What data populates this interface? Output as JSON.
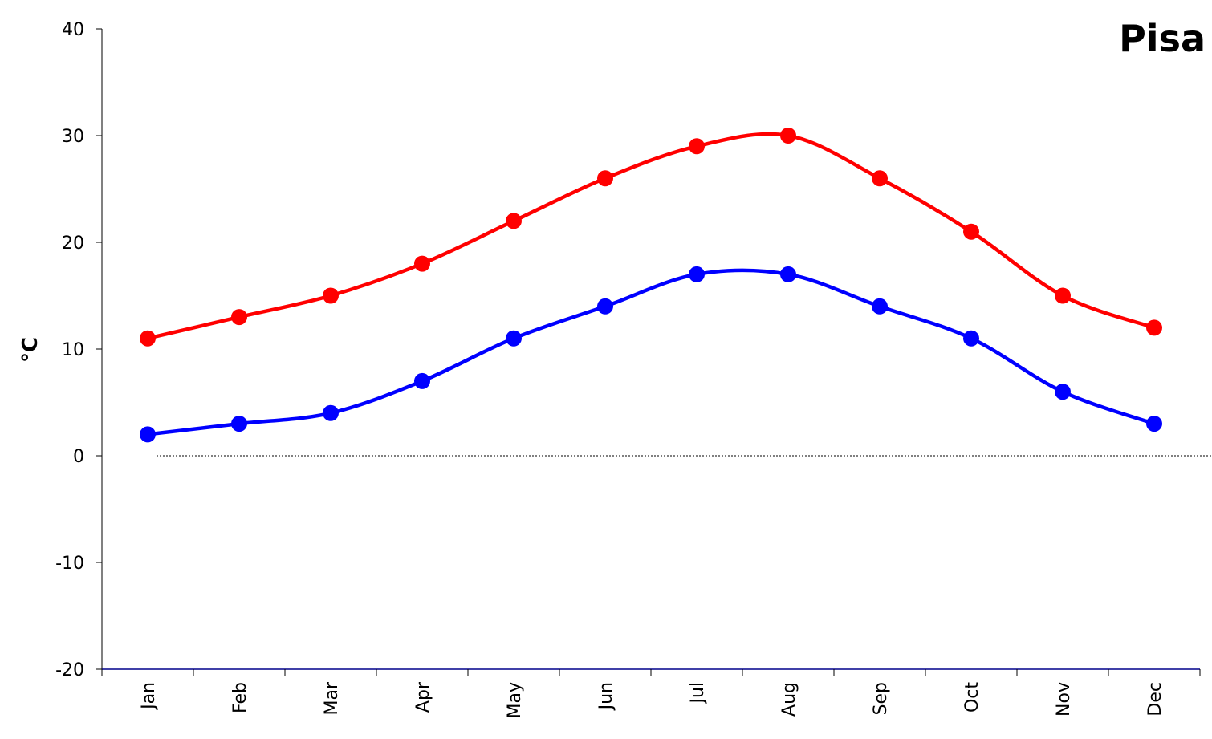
{
  "chart_data": {
    "type": "line",
    "title": "Pisa",
    "y_label": "°C",
    "categories": [
      "Jan",
      "Feb",
      "Mar",
      "Apr",
      "May",
      "Jun",
      "Jul",
      "Aug",
      "Sep",
      "Oct",
      "Nov",
      "Dec"
    ],
    "series": [
      {
        "color": "#ff0000",
        "values": [
          11,
          13,
          15,
          18,
          22,
          26,
          29,
          30,
          26,
          21,
          15,
          12
        ]
      },
      {
        "color": "#0000ff",
        "values": [
          2,
          3,
          4,
          7,
          11,
          14,
          17,
          17,
          14,
          11,
          6,
          3
        ]
      }
    ],
    "ylim": [
      -20,
      40
    ],
    "yticks": [
      -20,
      -10,
      0,
      10,
      20,
      30,
      40
    ],
    "smooth": true,
    "zero_line": true,
    "grid": false
  }
}
